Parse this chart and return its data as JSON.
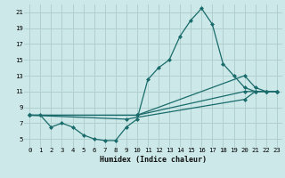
{
  "xlabel": "Humidex (Indice chaleur)",
  "bg_color": "#cce8e8",
  "grid_color": "#b0d0d0",
  "line_color": "#1a6b6b",
  "xlim": [
    -0.5,
    23.5
  ],
  "ylim": [
    4,
    22
  ],
  "xticks": [
    0,
    1,
    2,
    3,
    4,
    5,
    6,
    7,
    8,
    9,
    10,
    11,
    12,
    13,
    14,
    15,
    16,
    17,
    18,
    19,
    20,
    21,
    22,
    23
  ],
  "yticks": [
    5,
    7,
    9,
    11,
    13,
    15,
    17,
    19,
    21
  ],
  "series": [
    {
      "x": [
        0,
        1,
        2,
        3,
        4,
        5,
        6,
        7,
        8,
        9,
        10,
        11,
        12,
        13,
        14,
        15,
        16,
        17,
        18,
        19,
        20,
        21,
        22,
        23
      ],
      "y": [
        8,
        8,
        6.5,
        7,
        6.5,
        5.5,
        5,
        4.8,
        4.8,
        6.5,
        7.5,
        12.5,
        14,
        15,
        18,
        20,
        21.5,
        19.5,
        14.5,
        13,
        11.5,
        11,
        11,
        11
      ]
    },
    {
      "x": [
        0,
        10,
        20,
        21,
        22,
        23
      ],
      "y": [
        8,
        8,
        13,
        11.5,
        11,
        11
      ]
    },
    {
      "x": [
        0,
        10,
        20,
        21,
        22,
        23
      ],
      "y": [
        8,
        8,
        11,
        11,
        11,
        11
      ]
    },
    {
      "x": [
        0,
        9,
        20,
        21,
        22,
        23
      ],
      "y": [
        8,
        7.5,
        10,
        11,
        11,
        11
      ]
    }
  ]
}
